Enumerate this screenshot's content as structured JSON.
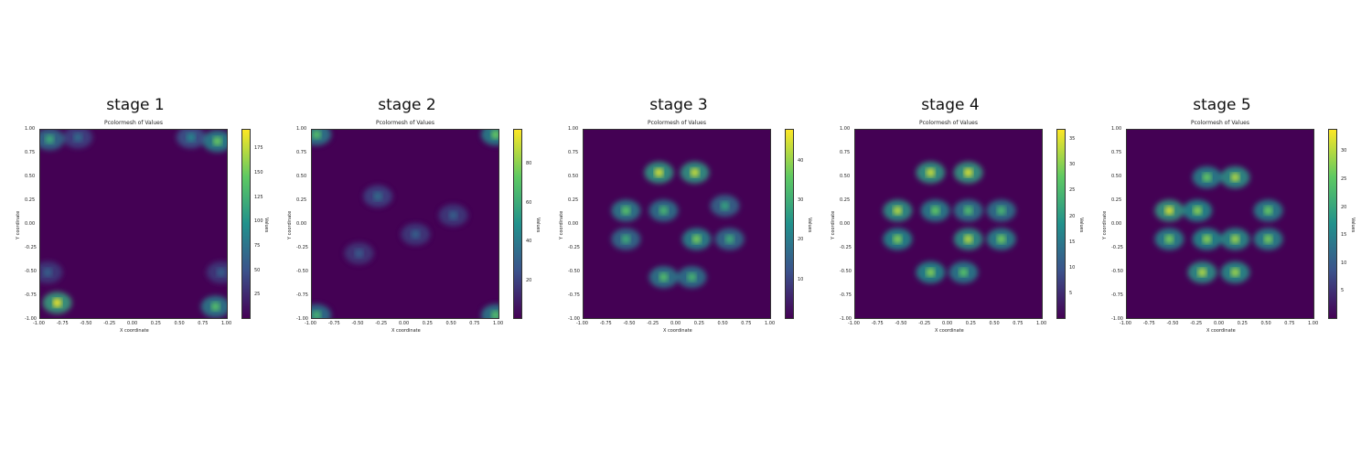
{
  "chart_data": [
    {
      "type": "heatmap",
      "stage_title": "stage 1",
      "title": "Pcolormesh of Values",
      "xlabel": "X coordinate",
      "ylabel": "Y coordinate",
      "colorbar_label": "Values",
      "xlim": [
        -1.0,
        1.0
      ],
      "ylim": [
        -1.0,
        1.0
      ],
      "x_ticks": [
        "-1.00",
        "-0.75",
        "-0.50",
        "-0.25",
        "0.00",
        "0.25",
        "0.50",
        "0.75",
        "1.00"
      ],
      "y_ticks": [
        "-1.00",
        "-0.75",
        "-0.50",
        "-0.25",
        "0.00",
        "0.25",
        "0.50",
        "0.75",
        "1.00"
      ],
      "colorbar_range": [
        0,
        195
      ],
      "colorbar_ticks": [
        25,
        50,
        75,
        100,
        125,
        150,
        175
      ],
      "colormap": "viridis",
      "hotspots": [
        {
          "x": -0.9,
          "y": 0.9,
          "value": 120
        },
        {
          "x": 0.88,
          "y": 0.88,
          "value": 150
        },
        {
          "x": -0.82,
          "y": -0.82,
          "value": 190
        },
        {
          "x": 0.86,
          "y": -0.86,
          "value": 140
        },
        {
          "x": 0.6,
          "y": 0.92,
          "value": 90
        },
        {
          "x": -0.6,
          "y": 0.92,
          "value": 70
        },
        {
          "x": -0.92,
          "y": -0.5,
          "value": 60
        },
        {
          "x": 0.92,
          "y": -0.5,
          "value": 60
        }
      ]
    },
    {
      "type": "heatmap",
      "stage_title": "stage 2",
      "title": "Pcolormesh of Values",
      "xlabel": "X coordinate",
      "ylabel": "Y coordinate",
      "colorbar_label": "Values",
      "xlim": [
        -1.0,
        1.0
      ],
      "ylim": [
        -1.0,
        1.0
      ],
      "x_ticks": [
        "-1.00",
        "-0.75",
        "-0.50",
        "-0.25",
        "0.00",
        "0.25",
        "0.50",
        "0.75",
        "1.00"
      ],
      "y_ticks": [
        "-1.00",
        "-0.75",
        "-0.50",
        "-0.25",
        "0.00",
        "0.25",
        "0.50",
        "0.75",
        "1.00"
      ],
      "colorbar_range": [
        0,
        98
      ],
      "colorbar_ticks": [
        20,
        40,
        60,
        80
      ],
      "colormap": "viridis",
      "hotspots": [
        {
          "x": -0.95,
          "y": 0.95,
          "value": 70
        },
        {
          "x": 0.95,
          "y": 0.95,
          "value": 75
        },
        {
          "x": -0.95,
          "y": -0.95,
          "value": 65
        },
        {
          "x": 0.95,
          "y": -0.95,
          "value": 70
        },
        {
          "x": -0.3,
          "y": 0.3,
          "value": 35
        },
        {
          "x": 0.1,
          "y": -0.1,
          "value": 30
        },
        {
          "x": 0.5,
          "y": 0.1,
          "value": 30
        },
        {
          "x": -0.5,
          "y": -0.3,
          "value": 28
        }
      ]
    },
    {
      "type": "heatmap",
      "stage_title": "stage 3",
      "title": "Pcolormesh of Values",
      "xlabel": "X coordinate",
      "ylabel": "Y coordinate",
      "colorbar_label": "Values",
      "xlim": [
        -1.0,
        1.0
      ],
      "ylim": [
        -1.0,
        1.0
      ],
      "x_ticks": [
        "-1.00",
        "-0.75",
        "-0.50",
        "-0.25",
        "0.00",
        "0.25",
        "0.50",
        "0.75",
        "1.00"
      ],
      "y_ticks": [
        "-1.00",
        "-0.75",
        "-0.50",
        "-0.25",
        "0.00",
        "0.25",
        "0.50",
        "0.75",
        "1.00"
      ],
      "colorbar_range": [
        0,
        48
      ],
      "colorbar_ticks": [
        10,
        20,
        30,
        40
      ],
      "colormap": "viridis",
      "hotspots": [
        {
          "x": -0.2,
          "y": 0.55,
          "value": 45
        },
        {
          "x": 0.18,
          "y": 0.55,
          "value": 44
        },
        {
          "x": -0.55,
          "y": 0.15,
          "value": 35
        },
        {
          "x": -0.15,
          "y": 0.15,
          "value": 32
        },
        {
          "x": 0.2,
          "y": -0.15,
          "value": 38
        },
        {
          "x": 0.55,
          "y": -0.15,
          "value": 30
        },
        {
          "x": -0.55,
          "y": -0.15,
          "value": 30
        },
        {
          "x": -0.15,
          "y": -0.55,
          "value": 34
        },
        {
          "x": 0.15,
          "y": -0.55,
          "value": 32
        },
        {
          "x": 0.5,
          "y": 0.2,
          "value": 28
        }
      ]
    },
    {
      "type": "heatmap",
      "stage_title": "stage 4",
      "title": "Pcolormesh of Values",
      "xlabel": "X coordinate",
      "ylabel": "Y coordinate",
      "colorbar_label": "Values",
      "xlim": [
        -1.0,
        1.0
      ],
      "ylim": [
        -1.0,
        1.0
      ],
      "x_ticks": [
        "-1.00",
        "-0.75",
        "-0.50",
        "-0.25",
        "0.00",
        "0.25",
        "0.50",
        "0.75",
        "1.00"
      ],
      "y_ticks": [
        "-1.00",
        "-0.75",
        "-0.50",
        "-0.25",
        "0.00",
        "0.25",
        "0.50",
        "0.75",
        "1.00"
      ],
      "colorbar_range": [
        0,
        37
      ],
      "colorbar_ticks": [
        5,
        10,
        15,
        20,
        25,
        30,
        35
      ],
      "colormap": "viridis",
      "hotspots": [
        {
          "x": -0.2,
          "y": 0.55,
          "value": 34
        },
        {
          "x": 0.2,
          "y": 0.55,
          "value": 35
        },
        {
          "x": -0.55,
          "y": 0.15,
          "value": 33
        },
        {
          "x": -0.15,
          "y": 0.15,
          "value": 28
        },
        {
          "x": 0.2,
          "y": 0.15,
          "value": 26
        },
        {
          "x": 0.55,
          "y": 0.15,
          "value": 25
        },
        {
          "x": -0.55,
          "y": -0.15,
          "value": 30
        },
        {
          "x": 0.2,
          "y": -0.15,
          "value": 33
        },
        {
          "x": 0.55,
          "y": -0.15,
          "value": 29
        },
        {
          "x": -0.2,
          "y": -0.5,
          "value": 30
        },
        {
          "x": 0.15,
          "y": -0.5,
          "value": 27
        }
      ]
    },
    {
      "type": "heatmap",
      "stage_title": "stage 5",
      "title": "Pcolormesh of Values",
      "xlabel": "X coordinate",
      "ylabel": "Y coordinate",
      "colorbar_label": "Values",
      "xlim": [
        -1.0,
        1.0
      ],
      "ylim": [
        -1.0,
        1.0
      ],
      "x_ticks": [
        "-1.00",
        "-0.75",
        "-0.50",
        "-0.25",
        "0.00",
        "0.25",
        "0.50",
        "0.75",
        "1.00"
      ],
      "y_ticks": [
        "-1.00",
        "-0.75",
        "-0.50",
        "-0.25",
        "0.00",
        "0.25",
        "0.50",
        "0.75",
        "1.00"
      ],
      "colorbar_range": [
        0,
        34
      ],
      "colorbar_ticks": [
        5,
        10,
        15,
        20,
        25,
        30
      ],
      "colormap": "viridis",
      "hotspots": [
        {
          "x": -0.55,
          "y": 0.15,
          "value": 32
        },
        {
          "x": -0.25,
          "y": 0.15,
          "value": 28
        },
        {
          "x": 0.15,
          "y": 0.5,
          "value": 30
        },
        {
          "x": -0.15,
          "y": 0.5,
          "value": 26
        },
        {
          "x": 0.5,
          "y": 0.15,
          "value": 26
        },
        {
          "x": -0.55,
          "y": -0.15,
          "value": 27
        },
        {
          "x": -0.15,
          "y": -0.15,
          "value": 28
        },
        {
          "x": 0.15,
          "y": -0.15,
          "value": 29
        },
        {
          "x": 0.5,
          "y": -0.15,
          "value": 27
        },
        {
          "x": -0.2,
          "y": -0.5,
          "value": 30
        },
        {
          "x": 0.15,
          "y": -0.5,
          "value": 29
        }
      ]
    }
  ]
}
